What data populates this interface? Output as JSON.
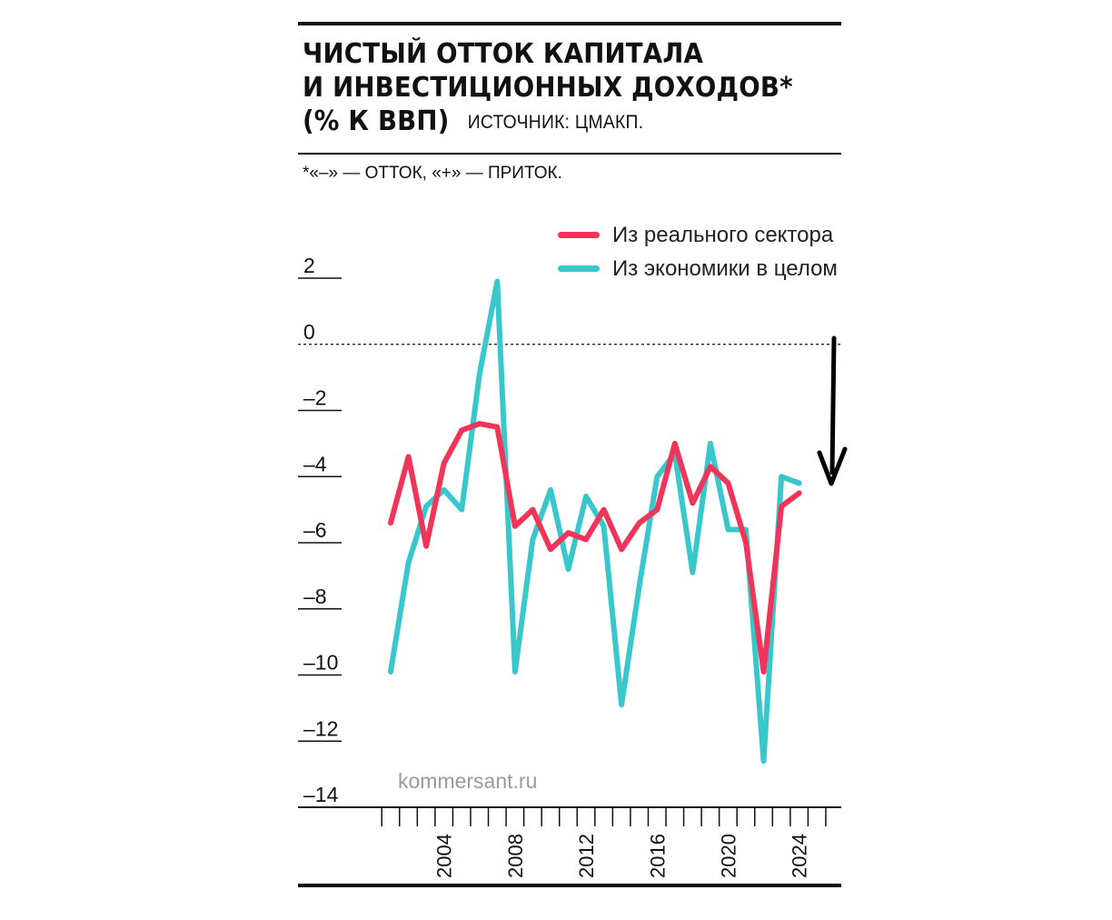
{
  "title": {
    "line1": "ЧИСТЫЙ ОТТОК КАПИТАЛА",
    "line2": "И ИНВЕСТИЦИОННЫХ ДОХОДОВ*",
    "line3": "(% К ВВП)",
    "source": "ИСТОЧНИК: ЦМАКП."
  },
  "footnote": "*«–» — ОТТОК, «+» — ПРИТОК.",
  "watermark": "kommersant.ru",
  "chart_data": {
    "type": "line",
    "title": "ЧИСТЫЙ ОТТОК КАПИТАЛА И ИНВЕСТИЦИОННЫХ ДОХОДОВ* (% К ВВП)",
    "x": [
      2001,
      2002,
      2003,
      2004,
      2005,
      2006,
      2007,
      2008,
      2009,
      2010,
      2011,
      2012,
      2013,
      2014,
      2015,
      2016,
      2017,
      2018,
      2019,
      2020,
      2021,
      2022,
      2023,
      2024
    ],
    "series": [
      {
        "name": "Из реального сектора",
        "color": "#f0345a",
        "values": [
          -5.4,
          -3.4,
          -6.1,
          -3.6,
          -2.6,
          -2.4,
          -2.5,
          -5.5,
          -5.0,
          -6.2,
          -5.7,
          -5.9,
          -5.0,
          -6.2,
          -5.4,
          -5.0,
          -3.0,
          -4.8,
          -3.7,
          -4.2,
          -6.0,
          -9.9,
          -4.9,
          -4.5
        ]
      },
      {
        "name": "Из экономики в целом",
        "color": "#38c8cc",
        "values": [
          -9.9,
          -6.6,
          -4.9,
          -4.4,
          -5.0,
          -0.9,
          1.9,
          -9.9,
          -5.9,
          -4.4,
          -6.8,
          -4.6,
          -5.5,
          -10.9,
          -7.3,
          -4.0,
          -3.3,
          -6.9,
          -3.0,
          -5.6,
          -5.6,
          -12.6,
          -4.0,
          -4.2
        ]
      }
    ],
    "y_ticks": [
      2,
      0,
      -2,
      -4,
      -6,
      -8,
      -10,
      -12,
      -14
    ],
    "y_tick_labels": [
      "2",
      "0",
      "–2",
      "–4",
      "–6",
      "–8",
      "–10",
      "–12",
      "–14"
    ],
    "x_tick_labels": [
      {
        "year": 2004,
        "label": "2004"
      },
      {
        "year": 2008,
        "label": "2008"
      },
      {
        "year": 2012,
        "label": "2012"
      },
      {
        "year": 2016,
        "label": "2016"
      },
      {
        "year": 2020,
        "label": "2020"
      },
      {
        "year": 2024,
        "label": "2024"
      }
    ],
    "x_minor_ticks": [
      2001,
      2002,
      2003,
      2004,
      2005,
      2006,
      2007,
      2008,
      2009,
      2010,
      2011,
      2012,
      2013,
      2014,
      2015,
      2016,
      2017,
      2018,
      2019,
      2020,
      2021,
      2022,
      2023,
      2024,
      2025,
      2026
    ],
    "ylim": [
      -14,
      2
    ],
    "zero_line": "dashed",
    "legend_position": "top-right",
    "annotation": "downward arrow",
    "annotation_color": "#000000",
    "grid": false
  }
}
